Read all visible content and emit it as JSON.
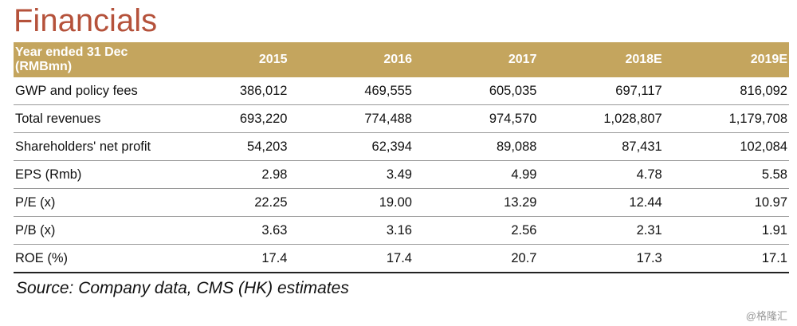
{
  "title": "Financials",
  "table": {
    "headers": [
      "Year ended 31 Dec (RMBmn)",
      "2015",
      "2016",
      "2017",
      "2018E",
      "2019E"
    ],
    "rows": [
      [
        "GWP and policy fees",
        "386,012",
        "469,555",
        "605,035",
        "697,117",
        "816,092"
      ],
      [
        "Total revenues",
        "693,220",
        "774,488",
        "974,570",
        "1,028,807",
        "1,179,708"
      ],
      [
        "Shareholders' net profit",
        "54,203",
        "62,394",
        "89,088",
        "87,431",
        "102,084"
      ],
      [
        "EPS (Rmb)",
        "2.98",
        "3.49",
        "4.99",
        "4.78",
        "5.58"
      ],
      [
        "P/E (x)",
        "22.25",
        "19.00",
        "13.29",
        "12.44",
        "10.97"
      ],
      [
        "P/B (x)",
        "3.63",
        "3.16",
        "2.56",
        "2.31",
        "1.91"
      ],
      [
        "ROE (%)",
        "17.4",
        "17.4",
        "20.7",
        "17.3",
        "17.1"
      ]
    ]
  },
  "source": "Source: Company data, CMS (HK) estimates",
  "watermark": "@格隆汇"
}
